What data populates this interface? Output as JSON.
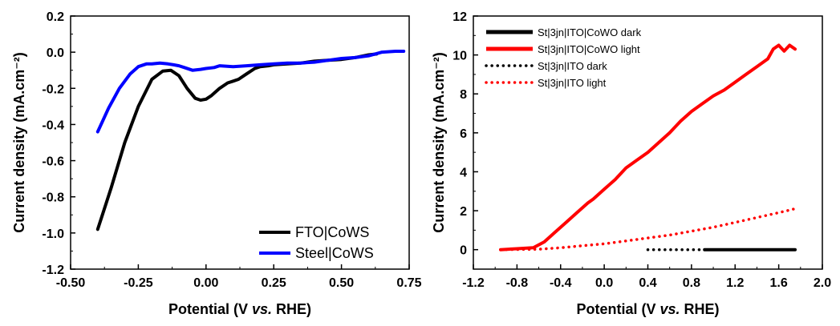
{
  "chart_data": [
    {
      "type": "line",
      "title": "",
      "xlabel": {
        "prefix": "Potential (V ",
        "italic": "vs.",
        "suffix": " RHE)"
      },
      "ylabel": "Current density (mA.cm⁻²)",
      "xlim": [
        -0.5,
        0.75
      ],
      "ylim": [
        -1.2,
        0.2
      ],
      "xticks": [
        -0.5,
        -0.25,
        0.0,
        0.25,
        0.5,
        0.75
      ],
      "xtick_labels": [
        "-0.50",
        "-0.25",
        "0.00",
        "0.25",
        "0.50",
        "0.75"
      ],
      "yticks": [
        0.2,
        0.0,
        -0.2,
        -0.4,
        -0.6,
        -0.8,
        -1.0,
        -1.2
      ],
      "ytick_labels": [
        "0.2",
        "0.0",
        "-0.2",
        "-0.4",
        "-0.6",
        "-0.8",
        "-1.0",
        "-1.2"
      ],
      "legend_position": "bottom-right",
      "grid": false,
      "series": [
        {
          "name": "FTO|CoWS",
          "color": "#000000",
          "style": "solid",
          "x": [
            -0.4,
            -0.35,
            -0.3,
            -0.25,
            -0.2,
            -0.16,
            -0.13,
            -0.1,
            -0.07,
            -0.04,
            -0.02,
            0.0,
            0.02,
            0.05,
            0.08,
            0.1,
            0.12,
            0.15,
            0.18,
            0.2,
            0.23,
            0.25,
            0.3,
            0.35,
            0.4,
            0.45,
            0.5,
            0.55,
            0.6,
            0.63
          ],
          "y": [
            -0.98,
            -0.75,
            -0.5,
            -0.3,
            -0.15,
            -0.105,
            -0.1,
            -0.13,
            -0.2,
            -0.255,
            -0.265,
            -0.26,
            -0.24,
            -0.2,
            -0.17,
            -0.16,
            -0.15,
            -0.12,
            -0.09,
            -0.08,
            -0.075,
            -0.07,
            -0.065,
            -0.06,
            -0.05,
            -0.045,
            -0.04,
            -0.03,
            -0.015,
            -0.01
          ]
        },
        {
          "name": "Steel|CoWS",
          "color": "#0000ff",
          "style": "solid",
          "x": [
            -0.4,
            -0.36,
            -0.32,
            -0.28,
            -0.25,
            -0.22,
            -0.2,
            -0.17,
            -0.14,
            -0.12,
            -0.1,
            -0.08,
            -0.05,
            -0.02,
            0.0,
            0.03,
            0.05,
            0.1,
            0.15,
            0.2,
            0.25,
            0.3,
            0.35,
            0.4,
            0.45,
            0.5,
            0.55,
            0.6,
            0.65,
            0.7,
            0.73
          ],
          "y": [
            -0.44,
            -0.31,
            -0.2,
            -0.12,
            -0.08,
            -0.065,
            -0.065,
            -0.06,
            -0.065,
            -0.07,
            -0.075,
            -0.085,
            -0.1,
            -0.095,
            -0.09,
            -0.085,
            -0.075,
            -0.08,
            -0.075,
            -0.07,
            -0.065,
            -0.06,
            -0.06,
            -0.055,
            -0.045,
            -0.035,
            -0.03,
            -0.02,
            0.0,
            0.005,
            0.005
          ]
        }
      ]
    },
    {
      "type": "line",
      "title": "",
      "xlabel": {
        "prefix": "Potential (V ",
        "italic": "vs.",
        "suffix": " RHE)"
      },
      "ylabel": "Current density (mA.cm⁻²)",
      "xlim": [
        -1.2,
        2.0
      ],
      "ylim": [
        -1,
        12
      ],
      "xticks": [
        -1.2,
        -0.8,
        -0.4,
        0.0,
        0.4,
        0.8,
        1.2,
        1.6,
        2.0
      ],
      "xtick_labels": [
        "-1.2",
        "-0.8",
        "-0.4",
        "0.0",
        "0.4",
        "0.8",
        "1.2",
        "1.6",
        "2.0"
      ],
      "yticks": [
        0,
        2,
        4,
        6,
        8,
        10,
        12
      ],
      "ytick_labels": [
        "0",
        "2",
        "4",
        "6",
        "8",
        "10",
        "12"
      ],
      "legend_position": "top-left",
      "grid": false,
      "series": [
        {
          "name": "St|3jn|ITO|CoWO dark",
          "color": "#000000",
          "style": "solid",
          "x": [
            0.92,
            1.75
          ],
          "y": [
            0.0,
            0.0
          ]
        },
        {
          "name": "St|3jn|ITO|CoWO light",
          "color": "#ff0000",
          "style": "solid",
          "x": [
            -0.95,
            -0.8,
            -0.65,
            -0.55,
            -0.45,
            -0.35,
            -0.25,
            -0.15,
            -0.1,
            -0.05,
            0.0,
            0.1,
            0.2,
            0.3,
            0.4,
            0.5,
            0.6,
            0.7,
            0.8,
            0.9,
            1.0,
            1.1,
            1.2,
            1.3,
            1.4,
            1.5,
            1.55,
            1.6,
            1.65,
            1.7,
            1.75
          ],
          "y": [
            0.0,
            0.05,
            0.1,
            0.4,
            0.9,
            1.4,
            1.9,
            2.4,
            2.6,
            2.85,
            3.1,
            3.6,
            4.2,
            4.6,
            5.0,
            5.5,
            6.0,
            6.6,
            7.1,
            7.5,
            7.9,
            8.2,
            8.6,
            9.0,
            9.4,
            9.8,
            10.3,
            10.5,
            10.2,
            10.5,
            10.3
          ]
        },
        {
          "name": "St|3jn|ITO dark",
          "color": "#000000",
          "style": "dotted",
          "x": [
            0.4,
            0.92
          ],
          "y": [
            0.0,
            0.0
          ]
        },
        {
          "name": "St|3jn|ITO light",
          "color": "#ff0000",
          "style": "dotted",
          "x": [
            -0.95,
            -0.6,
            -0.4,
            -0.2,
            0.0,
            0.2,
            0.4,
            0.6,
            0.8,
            1.0,
            1.2,
            1.4,
            1.6,
            1.75
          ],
          "y": [
            0.0,
            0.02,
            0.1,
            0.2,
            0.3,
            0.45,
            0.6,
            0.75,
            0.95,
            1.15,
            1.4,
            1.65,
            1.9,
            2.1
          ]
        }
      ]
    }
  ]
}
